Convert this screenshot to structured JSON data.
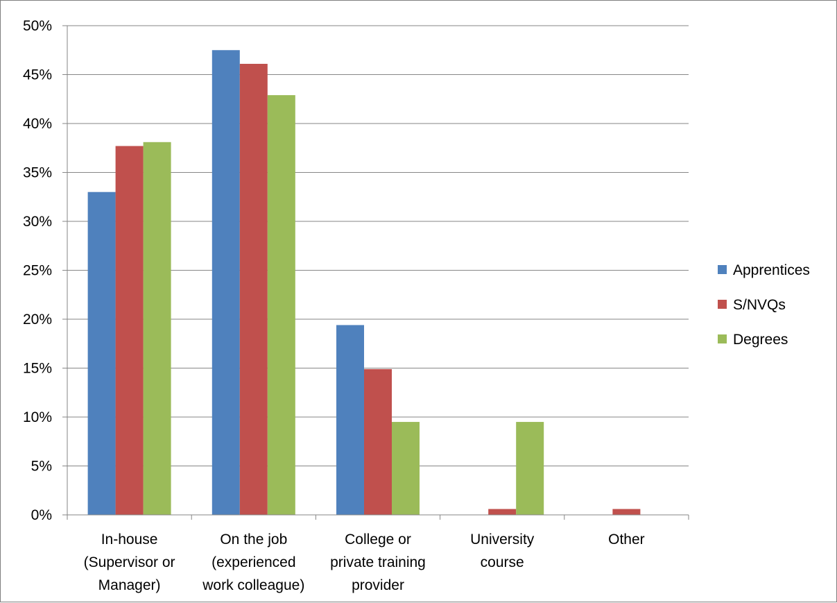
{
  "chart_data": {
    "type": "bar",
    "categories": [
      [
        "In-house",
        "(Supervisor or",
        "Manager)"
      ],
      [
        "On the job",
        "(experienced",
        "work colleague)"
      ],
      [
        "College or",
        "private training",
        "provider"
      ],
      [
        "University",
        "course"
      ],
      [
        "Other"
      ]
    ],
    "series": [
      {
        "name": "Apprentices",
        "color": "#4f81bd",
        "values": [
          33.0,
          47.5,
          19.4,
          0.0,
          0.0
        ]
      },
      {
        "name": "S/NVQs",
        "color": "#c0504d",
        "values": [
          37.7,
          46.1,
          14.9,
          0.6,
          0.6
        ]
      },
      {
        "name": "Degrees",
        "color": "#9bbb59",
        "values": [
          38.1,
          42.9,
          9.5,
          9.5,
          0.0
        ]
      }
    ],
    "y_ticks": [
      "0%",
      "5%",
      "10%",
      "15%",
      "20%",
      "25%",
      "30%",
      "35%",
      "40%",
      "45%",
      "50%"
    ],
    "ylim": [
      0,
      50
    ],
    "y_step": 5,
    "grid": true,
    "gridline_color": "#868686",
    "legend_position": "right",
    "title": "",
    "xlabel": "",
    "ylabel": ""
  }
}
